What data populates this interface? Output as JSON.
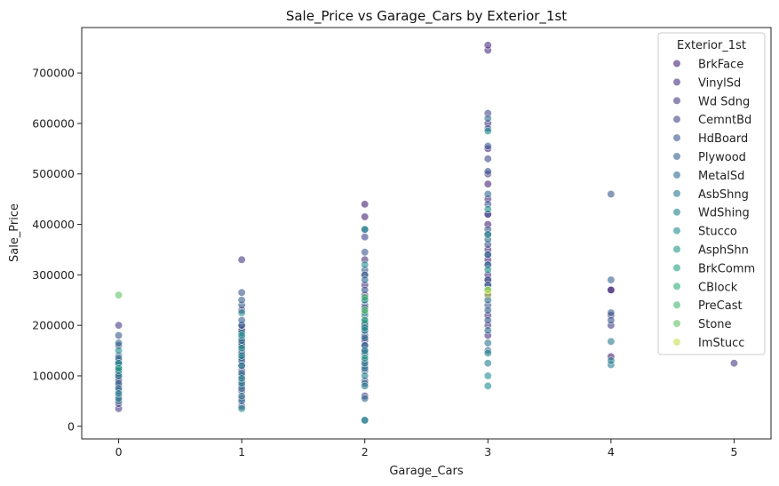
{
  "chart_data": {
    "type": "scatter",
    "title": "Sale_Price vs Garage_Cars by Exterior_1st",
    "xlabel": "Garage_Cars",
    "ylabel": "Sale_Price",
    "xlim": [
      -0.3,
      5.3
    ],
    "ylim": [
      -25000,
      790000
    ],
    "xticks": [
      0,
      1,
      2,
      3,
      4,
      5
    ],
    "yticks": [
      0,
      100000,
      200000,
      300000,
      400000,
      500000,
      600000,
      700000
    ],
    "grid": false,
    "legend": {
      "title": "Exterior_1st",
      "placement": "top-right"
    },
    "series": [
      {
        "name": "BrkFace",
        "color": "#482173",
        "points": [
          [
            0,
            95000
          ],
          [
            0,
            120000
          ],
          [
            1,
            150000
          ],
          [
            1,
            190000
          ],
          [
            2,
            200000
          ],
          [
            2,
            260000
          ],
          [
            2,
            440000
          ],
          [
            2,
            415000
          ],
          [
            3,
            290000
          ],
          [
            3,
            330000
          ],
          [
            3,
            400000
          ],
          [
            3,
            480000
          ],
          [
            4,
            270000
          ],
          [
            4,
            138000
          ]
        ]
      },
      {
        "name": "VinylSd",
        "color": "#472f7d",
        "points": [
          [
            0,
            110000
          ],
          [
            1,
            160000
          ],
          [
            1,
            230000
          ],
          [
            2,
            170000
          ],
          [
            2,
            200000
          ],
          [
            2,
            240000
          ],
          [
            2,
            280000
          ],
          [
            2,
            330000
          ],
          [
            3,
            180000
          ],
          [
            3,
            220000
          ],
          [
            3,
            260000
          ],
          [
            3,
            300000
          ],
          [
            3,
            350000
          ],
          [
            3,
            380000
          ],
          [
            3,
            420000
          ],
          [
            3,
            450000
          ],
          [
            3,
            500000
          ],
          [
            3,
            550000
          ],
          [
            3,
            600000
          ],
          [
            3,
            745000
          ],
          [
            3,
            755000
          ],
          [
            4,
            220000
          ],
          [
            4,
            270000
          ]
        ]
      },
      {
        "name": "Wd Sdng",
        "color": "#443b84",
        "points": [
          [
            0,
            35000
          ],
          [
            0,
            45000
          ],
          [
            0,
            60000
          ],
          [
            0,
            80000
          ],
          [
            0,
            100000
          ],
          [
            0,
            130000
          ],
          [
            0,
            160000
          ],
          [
            0,
            200000
          ],
          [
            1,
            40000
          ],
          [
            1,
            55000
          ],
          [
            1,
            70000
          ],
          [
            1,
            90000
          ],
          [
            1,
            110000
          ],
          [
            1,
            130000
          ],
          [
            1,
            160000
          ],
          [
            1,
            190000
          ],
          [
            1,
            330000
          ],
          [
            2,
            60000
          ],
          [
            2,
            90000
          ],
          [
            2,
            130000
          ],
          [
            2,
            150000
          ],
          [
            2,
            200000
          ],
          [
            3,
            200000
          ],
          [
            3,
            260000
          ],
          [
            4,
            200000
          ],
          [
            5,
            125000
          ]
        ]
      },
      {
        "name": "CemntBd",
        "color": "#404688",
        "points": [
          [
            1,
            200000
          ],
          [
            2,
            180000
          ],
          [
            2,
            230000
          ],
          [
            2,
            300000
          ],
          [
            2,
            375000
          ],
          [
            3,
            280000
          ],
          [
            3,
            320000
          ],
          [
            3,
            360000
          ],
          [
            3,
            420000
          ],
          [
            3,
            530000
          ],
          [
            3,
            590000
          ],
          [
            3,
            620000
          ]
        ]
      },
      {
        "name": "HdBoard",
        "color": "#39558c",
        "points": [
          [
            0,
            70000
          ],
          [
            0,
            90000
          ],
          [
            0,
            115000
          ],
          [
            0,
            140000
          ],
          [
            0,
            180000
          ],
          [
            1,
            80000
          ],
          [
            1,
            100000
          ],
          [
            1,
            130000
          ],
          [
            1,
            165000
          ],
          [
            1,
            200000
          ],
          [
            1,
            240000
          ],
          [
            1,
            265000
          ],
          [
            2,
            110000
          ],
          [
            2,
            140000
          ],
          [
            2,
            160000
          ],
          [
            2,
            190000
          ],
          [
            2,
            220000
          ],
          [
            2,
            270000
          ],
          [
            2,
            310000
          ],
          [
            2,
            345000
          ],
          [
            3,
            210000
          ],
          [
            3,
            240000
          ],
          [
            3,
            290000
          ],
          [
            3,
            340000
          ],
          [
            3,
            390000
          ],
          [
            3,
            440000
          ],
          [
            3,
            505000
          ],
          [
            3,
            555000
          ],
          [
            4,
            460000
          ],
          [
            4,
            210000
          ]
        ]
      },
      {
        "name": "Plywood",
        "color": "#35608d",
        "points": [
          [
            0,
            85000
          ],
          [
            0,
            125000
          ],
          [
            1,
            120000
          ],
          [
            1,
            145000
          ],
          [
            1,
            175000
          ],
          [
            1,
            210000
          ],
          [
            1,
            250000
          ],
          [
            2,
            120000
          ],
          [
            2,
            160000
          ],
          [
            2,
            210000
          ],
          [
            2,
            250000
          ],
          [
            2,
            300000
          ],
          [
            3,
            230000
          ],
          [
            3,
            280000
          ],
          [
            3,
            340000
          ],
          [
            4,
            290000
          ],
          [
            4,
            225000
          ]
        ]
      },
      {
        "name": "MetalSd",
        "color": "#2f6b8e",
        "points": [
          [
            0,
            50000
          ],
          [
            0,
            75000
          ],
          [
            0,
            105000
          ],
          [
            0,
            135000
          ],
          [
            0,
            165000
          ],
          [
            1,
            50000
          ],
          [
            1,
            75000
          ],
          [
            1,
            105000
          ],
          [
            1,
            135000
          ],
          [
            1,
            170000
          ],
          [
            2,
            55000
          ],
          [
            2,
            85000
          ],
          [
            2,
            115000
          ],
          [
            2,
            145000
          ],
          [
            2,
            175000
          ],
          [
            2,
            205000
          ],
          [
            2,
            235000
          ],
          [
            2,
            290000
          ],
          [
            2,
            390000
          ],
          [
            3,
            150000
          ],
          [
            3,
            190000
          ],
          [
            3,
            250000
          ],
          [
            3,
            320000
          ],
          [
            3,
            370000
          ],
          [
            3,
            460000
          ],
          [
            3,
            610000
          ]
        ]
      },
      {
        "name": "AsbShng",
        "color": "#2a768e",
        "points": [
          [
            0,
            55000
          ],
          [
            0,
            100000
          ],
          [
            1,
            60000
          ],
          [
            1,
            85000
          ],
          [
            1,
            120000
          ],
          [
            2,
            80000
          ],
          [
            2,
            125000
          ],
          [
            2,
            12000
          ],
          [
            3,
            165000
          ],
          [
            4,
            168000
          ],
          [
            4,
            122000
          ]
        ]
      },
      {
        "name": "WdShing",
        "color": "#25818e",
        "points": [
          [
            0,
            65000
          ],
          [
            0,
            110000
          ],
          [
            1,
            35000
          ],
          [
            1,
            95000
          ],
          [
            1,
            140000
          ],
          [
            1,
            185000
          ],
          [
            2,
            100000
          ],
          [
            2,
            150000
          ],
          [
            2,
            190000
          ],
          [
            2,
            12000
          ],
          [
            2,
            390000
          ],
          [
            3,
            125000
          ],
          [
            3,
            145000
          ],
          [
            3,
            270000
          ],
          [
            4,
            130000
          ]
        ]
      },
      {
        "name": "Stucco",
        "color": "#1f8c8d",
        "points": [
          [
            0,
            125000
          ],
          [
            0,
            150000
          ],
          [
            1,
            180000
          ],
          [
            1,
            225000
          ],
          [
            2,
            195000
          ],
          [
            2,
            250000
          ],
          [
            2,
            320000
          ],
          [
            3,
            80000
          ],
          [
            3,
            100000
          ],
          [
            3,
            310000
          ],
          [
            3,
            380000
          ],
          [
            3,
            430000
          ],
          [
            3,
            585000
          ]
        ]
      },
      {
        "name": "AsphShn",
        "color": "#1e978a",
        "points": [
          [
            1,
            155000
          ],
          [
            2,
            225000
          ]
        ]
      },
      {
        "name": "BrkComm",
        "color": "#22a284",
        "points": [
          [
            0,
            115000
          ],
          [
            2,
            135000
          ]
        ]
      },
      {
        "name": "CBlock",
        "color": "#2fad7c",
        "points": [
          [
            2,
            210000
          ],
          [
            3,
            270000
          ]
        ]
      },
      {
        "name": "PreCast",
        "color": "#45b872",
        "points": [
          [
            2,
            255000
          ]
        ]
      },
      {
        "name": "Stone",
        "color": "#61c265",
        "points": [
          [
            0,
            260000
          ],
          [
            2,
            230000
          ]
        ]
      },
      {
        "name": "ImStucc",
        "color": "#c5df4f",
        "points": [
          [
            3,
            262000
          ],
          [
            3,
            270000
          ]
        ]
      }
    ]
  }
}
